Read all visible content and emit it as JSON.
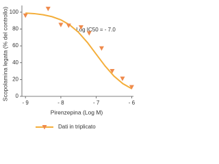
{
  "chart_data": {
    "type": "scatter",
    "y_label": "Scopolamina legata (% del controllo)",
    "x_label": "Pirenzepina (Log M)",
    "annotation": "Log IC50 = - 7.0",
    "xlim": [
      -9.1,
      -5.95
    ],
    "xticks": [
      {
        "value": -9,
        "label": "- 9"
      },
      {
        "value": -8,
        "label": "- 8"
      },
      {
        "value": -7,
        "label": "- 7"
      },
      {
        "value": -6,
        "label": "- 6"
      }
    ],
    "ylim": [
      0,
      108
    ],
    "yticks": [
      0,
      20,
      40,
      60,
      80,
      100
    ],
    "grid": false,
    "series": [
      {
        "name": "Dati in triplicato",
        "color": "#ef8a4c",
        "x": [
          -9,
          -8.36,
          -8,
          -7.78,
          -7.43,
          -7.2,
          -6.85,
          -6.55,
          -6.26,
          -6
        ],
        "values": [
          96,
          104,
          85,
          84,
          82,
          75,
          57,
          30,
          21,
          11
        ]
      }
    ],
    "fit": {
      "color": "#f4ae3a",
      "x": [
        -9,
        -8.75,
        -8.5,
        -8.25,
        -8,
        -7.75,
        -7.5,
        -7.25,
        -7,
        -6.75,
        -6.5,
        -6.25,
        -6
      ],
      "values": [
        99.0,
        98.3,
        96.9,
        94.7,
        90.9,
        84.9,
        76.0,
        64.0,
        50,
        36.0,
        24.0,
        15.1,
        9.1
      ]
    }
  }
}
